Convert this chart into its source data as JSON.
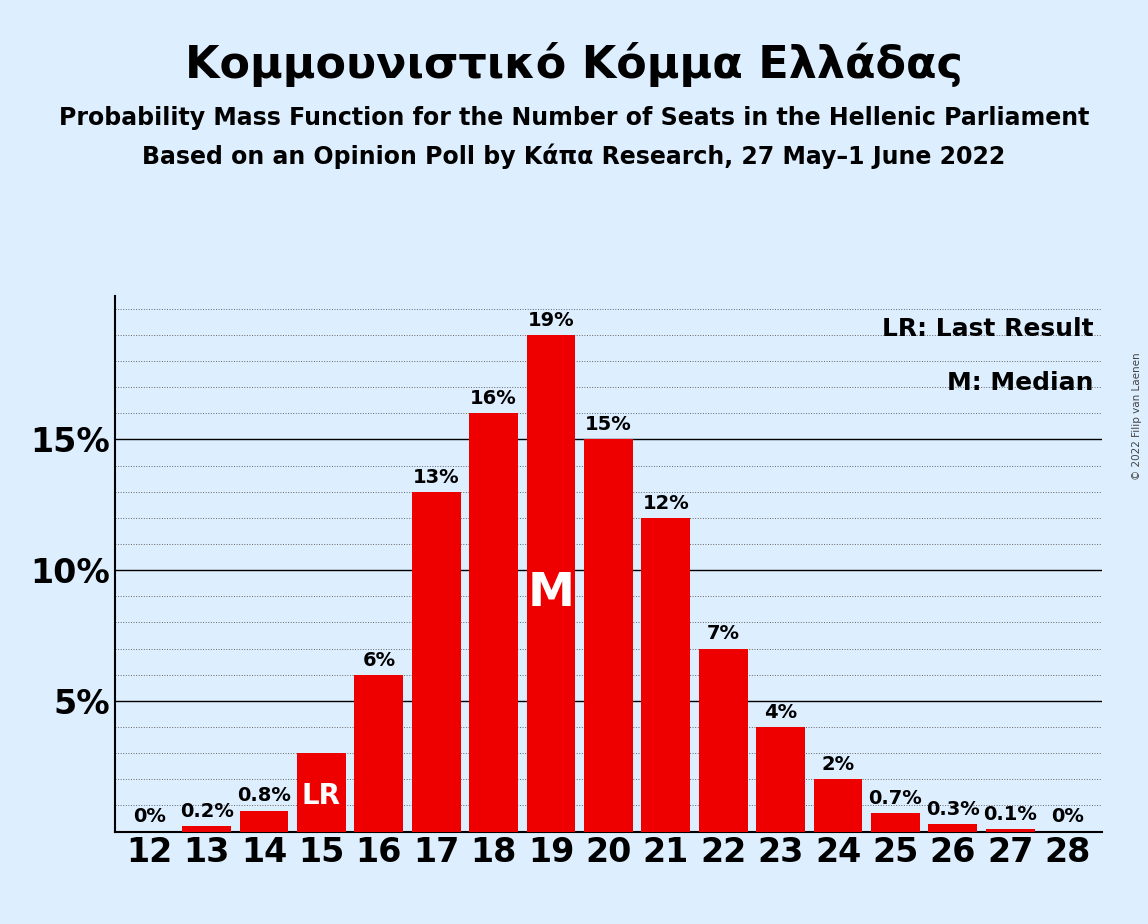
{
  "title": "Κομμουνιστικό Κόμμα Ελλάδας",
  "subtitle1": "Probability Mass Function for the Number of Seats in the Hellenic Parliament",
  "subtitle2": "Based on an Opinion Poll by Κάπα Research, 27 May–1 June 2022",
  "copyright": "© 2022 Filip van Laenen",
  "categories": [
    12,
    13,
    14,
    15,
    16,
    17,
    18,
    19,
    20,
    21,
    22,
    23,
    24,
    25,
    26,
    27,
    28
  ],
  "values": [
    0.0,
    0.2,
    0.8,
    3.0,
    6.0,
    13.0,
    16.0,
    19.0,
    15.0,
    12.0,
    7.0,
    4.0,
    2.0,
    0.7,
    0.3,
    0.1,
    0.0
  ],
  "labels": [
    "0%",
    "0.2%",
    "0.8%",
    "LR",
    "6%",
    "13%",
    "16%",
    "19%",
    "15%",
    "12%",
    "7%",
    "4%",
    "2%",
    "0.7%",
    "0.3%",
    "0.1%",
    "0%"
  ],
  "bar_color": "#ee0000",
  "background_color": "#ddeeff",
  "text_color": "#000000",
  "median_bar": 19,
  "lr_bar": 15,
  "legend_lr": "LR: Last Result",
  "legend_m": "M: Median",
  "ylim": [
    0,
    20.5
  ]
}
